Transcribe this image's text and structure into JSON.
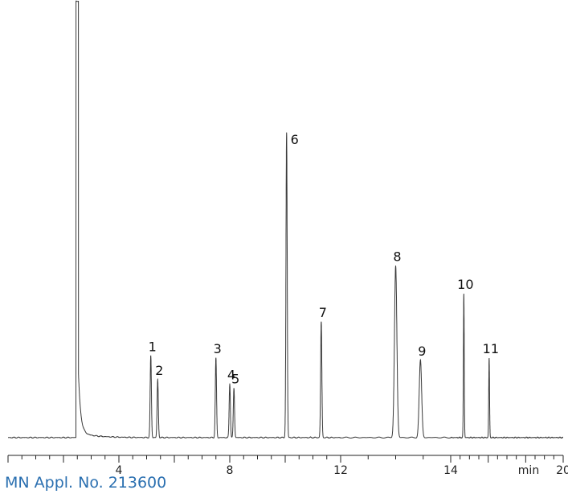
{
  "caption": "MN Appl. No. 213600",
  "colors": {
    "trace": "#3a3a3a",
    "axis": "#222222",
    "caption": "#2a6fb0"
  },
  "chart_data": {
    "type": "line",
    "title": "",
    "xlabel": "",
    "ylabel": "",
    "x_unit_label": "min",
    "xlim": [
      0,
      20
    ],
    "ylim": [
      0,
      100
    ],
    "x_ticks": [
      {
        "value": 4,
        "label": "4"
      },
      {
        "value": 8,
        "label": "8"
      },
      {
        "value": 12,
        "label": "12"
      },
      {
        "value": 14,
        "label": "14"
      },
      {
        "value": 20,
        "label": "20"
      }
    ],
    "grid": false,
    "solvent_peak": {
      "rt": 2.5,
      "height": 100
    },
    "peaks": [
      {
        "label": "1",
        "rt": 5.15,
        "height": 19
      },
      {
        "label": "2",
        "rt": 5.4,
        "height": 13.5
      },
      {
        "label": "3",
        "rt": 7.5,
        "height": 18.5
      },
      {
        "label": "4",
        "rt": 8.0,
        "height": 12.5
      },
      {
        "label": "5",
        "rt": 8.15,
        "height": 11.5
      },
      {
        "label": "6",
        "rt": 10.05,
        "height": 71
      },
      {
        "label": "7",
        "rt": 11.3,
        "height": 27
      },
      {
        "label": "8",
        "rt": 13.0,
        "height": 40
      },
      {
        "label": "9",
        "rt": 13.45,
        "height": 18
      },
      {
        "label": "10",
        "rt": 14.7,
        "height": 33.5
      },
      {
        "label": "11",
        "rt": 16.05,
        "height": 18.5
      }
    ]
  }
}
